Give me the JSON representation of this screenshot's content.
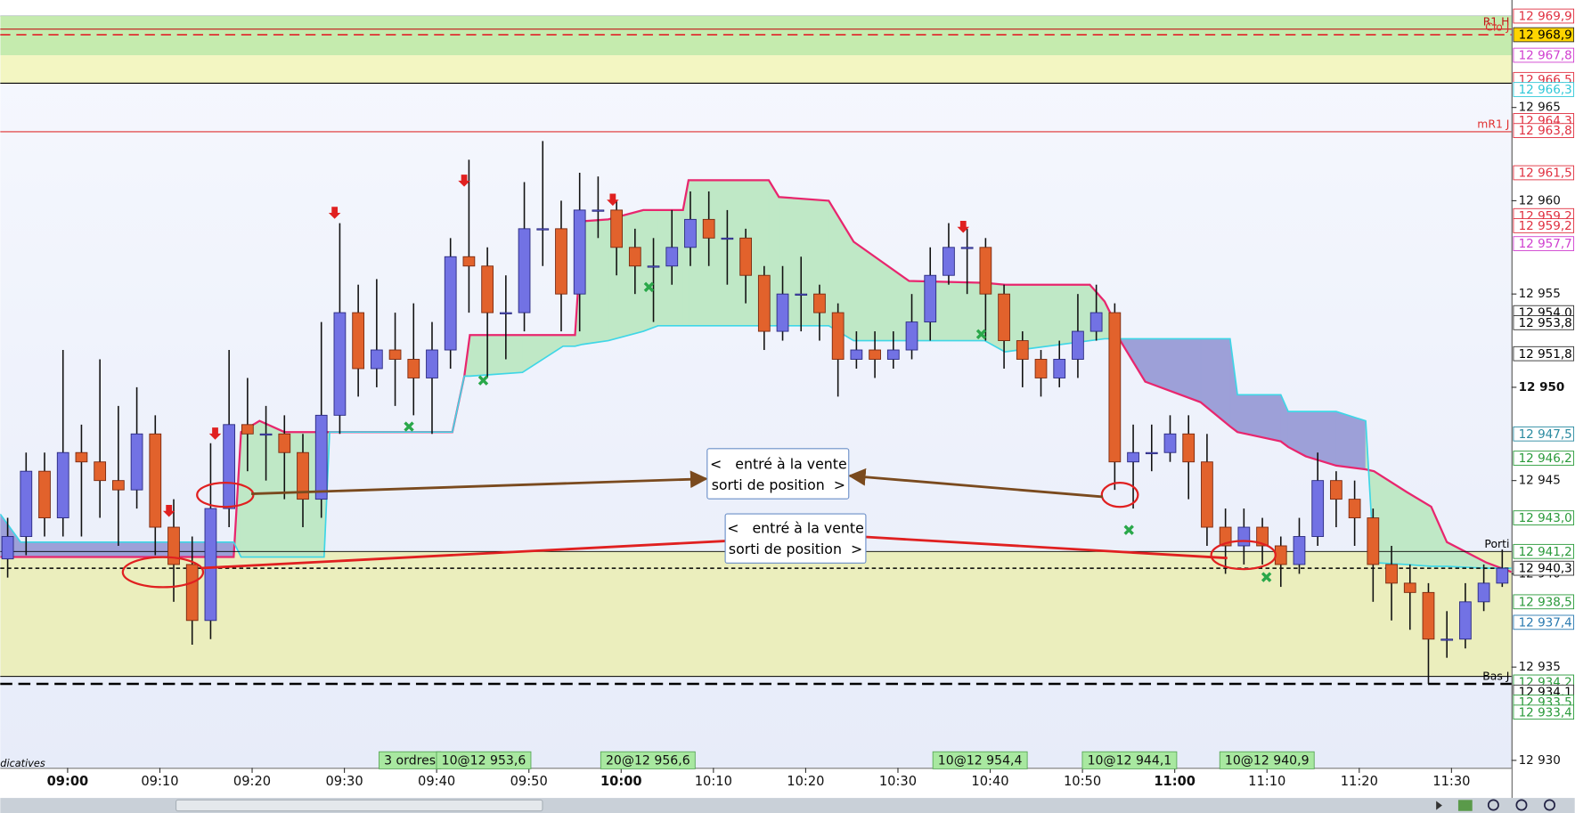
{
  "chart_data": {
    "type": "candlestick",
    "x": [
      533.5,
      535.5,
      537.5,
      539.5,
      541.5,
      543.5,
      545.5,
      547.5,
      549.5,
      551.5,
      553.5,
      555.5,
      557.5,
      559.5,
      561.5,
      563.5,
      565.5,
      567.5,
      569.5,
      571.5,
      573.5,
      575.5,
      577.5,
      579.5,
      581.5,
      583.5,
      585.5,
      587.5,
      589.5,
      591.5,
      593.5,
      595.5,
      597.5,
      599.5,
      601.5,
      603.5,
      605.5,
      607.5,
      609.5,
      611.5,
      613.5,
      615.5,
      617.5,
      619.5,
      621.5,
      623.5,
      625.5,
      627.5,
      629.5,
      631.5,
      633.5,
      635.5,
      637.5,
      639.5,
      641.5,
      643.5,
      645.5,
      647.5,
      649.5,
      651.5,
      653.5,
      655.5,
      657.5,
      659.5,
      661.5,
      663.5,
      665.5,
      667.5,
      669.5,
      671.5,
      673.5,
      675.5,
      677.5,
      679.5,
      681.5,
      683.5,
      685.5,
      687.5,
      689.5,
      691.5,
      693.5,
      695.5
    ],
    "open": [
      12940.8,
      12942,
      12945.5,
      12943,
      12946.5,
      12946,
      12945,
      12944.5,
      12947.5,
      12942.5,
      12940.5,
      12937.5,
      12943.5,
      12948,
      12947.5,
      12947.5,
      12946.5,
      12944,
      12948.5,
      12954,
      12951,
      12952,
      12951.5,
      12950.5,
      12952,
      12957,
      12956.5,
      12954,
      12954,
      12958.5,
      12958.5,
      12955,
      12959.5,
      12959.5,
      12957.5,
      12956.5,
      12956.5,
      12957.5,
      12959,
      12958,
      12958,
      12956,
      12953,
      12955,
      12955,
      12954,
      12951.5,
      12952,
      12951.5,
      12952,
      12953.5,
      12956,
      12957.5,
      12957.5,
      12955,
      12952.5,
      12951.5,
      12950.5,
      12951.5,
      12953,
      12954,
      12946,
      12946.5,
      12946.5,
      12947.5,
      12946,
      12942.5,
      12941.5,
      12942.5,
      12941.5,
      12940.5,
      12942,
      12945,
      12944,
      12943,
      12940.5,
      12939.5,
      12939,
      12936.5,
      12936.5,
      12938.5,
      12939.5
    ],
    "high": [
      12943,
      12946.5,
      12946.5,
      12952,
      12948,
      12951.5,
      12949,
      12950,
      12948.5,
      12944,
      12942,
      12947,
      12952,
      12950.5,
      12949,
      12948.5,
      12947.5,
      12953.5,
      12958.8,
      12955.5,
      12955.8,
      12954,
      12954.5,
      12953.5,
      12958,
      12962.2,
      12957.5,
      12956,
      12961,
      12963.2,
      12960,
      12961.5,
      12961.3,
      12960,
      12958.5,
      12958,
      12959.5,
      12960.5,
      12960.5,
      12959.5,
      12958.5,
      12956.5,
      12956.5,
      12957,
      12955.5,
      12954.5,
      12953,
      12953,
      12953,
      12955,
      12957.5,
      12958.8,
      12958.5,
      12958,
      12955.5,
      12953,
      12952,
      12952.5,
      12955,
      12955.5,
      12954.5,
      12948,
      12948,
      12948.5,
      12948.5,
      12947.5,
      12943.5,
      12943.5,
      12943,
      12942,
      12943,
      12946.5,
      12945.5,
      12945,
      12943.5,
      12941.5,
      12940.5,
      12939.5,
      12938,
      12939.5,
      12940.5,
      12941.3
    ],
    "low": [
      12939.8,
      12941,
      12942,
      12942,
      12942,
      12943,
      12941.5,
      12943.5,
      12941,
      12938.5,
      12936.2,
      12936.5,
      12942.5,
      12945.5,
      12945,
      12944,
      12942.5,
      12943,
      12947.5,
      12949.5,
      12950,
      12949,
      12948.5,
      12947.5,
      12951,
      12954,
      12950.5,
      12951.5,
      12953,
      12956.5,
      12953,
      12953,
      12958,
      12956,
      12955,
      12953.5,
      12955.5,
      12956.5,
      12956.5,
      12955.5,
      12954.5,
      12952,
      12952.5,
      12953,
      12952.5,
      12949.5,
      12951,
      12950.5,
      12951,
      12951.5,
      12952.5,
      12955.5,
      12955,
      12952.5,
      12951,
      12950,
      12949.5,
      12950,
      12950.5,
      12952.5,
      12944.5,
      12943.5,
      12945.5,
      12946,
      12944,
      12941.5,
      12940,
      12940.5,
      12940.5,
      12939.3,
      12940,
      12941.5,
      12942.5,
      12941.5,
      12938.5,
      12937.5,
      12937,
      12934.1,
      12935.5,
      12936,
      12938,
      12939.3
    ],
    "close": [
      12942,
      12945.5,
      12943,
      12946.5,
      12946,
      12945,
      12944.5,
      12947.5,
      12942.5,
      12940.5,
      12937.5,
      12943.5,
      12948,
      12947.5,
      12947.5,
      12946.5,
      12944,
      12948.5,
      12954,
      12951,
      12952,
      12951.5,
      12950.5,
      12952,
      12957,
      12956.5,
      12954,
      12954,
      12958.5,
      12958.5,
      12955,
      12959.5,
      12959.5,
      12957.5,
      12956.5,
      12956.5,
      12957.5,
      12959,
      12958,
      12958,
      12956,
      12953,
      12955,
      12955,
      12954,
      12951.5,
      12952,
      12951.5,
      12952,
      12953.5,
      12956,
      12957.5,
      12957.5,
      12955,
      12952.5,
      12951.5,
      12950.5,
      12951.5,
      12953,
      12954,
      12946,
      12946.5,
      12946.5,
      12947.5,
      12946,
      12942.5,
      12941.5,
      12942.5,
      12941.5,
      12940.5,
      12942,
      12945,
      12944,
      12943,
      12940.5,
      12939.5,
      12939,
      12936.5,
      12936.5,
      12938.5,
      12939.5,
      12940.3
    ],
    "up_color": "#7272e4",
    "down_color": "#e2622c",
    "xlim": [
      532.7,
      696.5
    ],
    "xticks": [
      {
        "value": 540,
        "label": "09:00"
      },
      {
        "value": 550,
        "label": "09:10"
      },
      {
        "value": 560,
        "label": "09:20"
      },
      {
        "value": 570,
        "label": "09:30"
      },
      {
        "value": 580,
        "label": "09:40"
      },
      {
        "value": 590,
        "label": "09:50"
      },
      {
        "value": 600,
        "label": "10:00"
      },
      {
        "value": 610,
        "label": "10:10"
      },
      {
        "value": 620,
        "label": "10:20"
      },
      {
        "value": 630,
        "label": "10:30"
      },
      {
        "value": 640,
        "label": "10:40"
      },
      {
        "value": 650,
        "label": "10:50"
      },
      {
        "value": 660,
        "label": "11:00"
      },
      {
        "value": 670,
        "label": "11:10"
      },
      {
        "value": 680,
        "label": "11:20"
      },
      {
        "value": 690,
        "label": "11:30"
      }
    ],
    "ylim": [
      12929.6,
      12969.9
    ],
    "yticks": [
      {
        "value": 12930,
        "label": "12 930"
      },
      {
        "value": 12935,
        "label": "12 935"
      },
      {
        "value": 12940,
        "label": "12 940"
      },
      {
        "value": 12945,
        "label": "12 945"
      },
      {
        "value": 12950,
        "label": "12 950"
      },
      {
        "value": 12955,
        "label": "12 955"
      },
      {
        "value": 12960,
        "label": "12 960"
      },
      {
        "value": 12965,
        "label": "12 965"
      }
    ],
    "cloud": {
      "x": [
        532.7,
        534.9,
        558.0,
        558.8,
        560.8,
        563.5,
        567.8,
        568.4,
        581.7,
        583.0,
        583.6,
        589.3,
        593.7,
        595.0,
        595.8,
        598.6,
        602.4,
        604.0,
        606.7,
        607.3,
        616.0,
        617.1,
        622.5,
        625.2,
        631.2,
        639.4,
        641.6,
        650.8,
        652.4,
        653.5,
        654.1,
        656.8,
        662.8,
        666.0,
        666.8,
        671.5,
        672.3,
        674.2,
        677.5,
        680.7,
        681.6,
        685.1,
        687.8,
        689.5,
        693.8,
        696.5
      ],
      "line_a": [
        12940.9,
        12940.9,
        12940.9,
        12947.6,
        12948.2,
        12947.6,
        12947.6,
        12947.6,
        12947.6,
        12950.6,
        12952.8,
        12952.8,
        12952.8,
        12952.8,
        12958.9,
        12959.0,
        12959.5,
        12959.5,
        12959.5,
        12961.1,
        12961.1,
        12960.2,
        12960.0,
        12957.8,
        12955.7,
        12955.6,
        12955.5,
        12955.5,
        12954.6,
        12953.5,
        12952.5,
        12950.3,
        12949.2,
        12947.9,
        12947.6,
        12947.1,
        12946.8,
        12946.3,
        12945.8,
        12945.6,
        12945.5,
        12944.4,
        12943.6,
        12941.7,
        12940.6,
        12940.1
      ],
      "line_b": [
        12943.2,
        12941.7,
        12941.7,
        12940.9,
        12940.9,
        12940.9,
        12940.9,
        12947.6,
        12947.6,
        12950.6,
        12950.6,
        12950.8,
        12952.2,
        12952.2,
        12952.3,
        12952.5,
        12953.0,
        12953.3,
        12953.3,
        12953.3,
        12953.3,
        12953.3,
        12953.3,
        12952.5,
        12952.5,
        12952.5,
        12951.9,
        12952.5,
        12952.6,
        12952.6,
        12952.6,
        12952.6,
        12952.6,
        12952.6,
        12949.6,
        12949.6,
        12948.7,
        12948.7,
        12948.7,
        12948.2,
        12940.6,
        12940.5,
        12940.4,
        12940.4,
        12940.3,
        12940.3
      ],
      "color_a": "#e8266e",
      "color_b": "#3fd6e6",
      "fill_up": "#bfe8c6",
      "fill_down": "#9da0d8"
    },
    "zones": [
      {
        "low": 12967.8,
        "high": 12969.9,
        "color": "#c5ebae"
      },
      {
        "low": 12966.3,
        "high": 12967.8,
        "color": "#f3f6c2"
      },
      {
        "low": 12934.5,
        "high": 12941.2,
        "color": "#ebeebd"
      }
    ],
    "hlines": [
      {
        "value": 12969.2,
        "label": "R1 H",
        "color": "#c01818",
        "dash": "none",
        "width": 1
      },
      {
        "value": 12968.9,
        "label": "Clo J",
        "color": "#e03030",
        "dash": "10 6",
        "width": 1.5
      },
      {
        "value": 12966.3,
        "color": "#000000",
        "dash": "none",
        "width": 1
      },
      {
        "value": 12963.7,
        "label": "mR1 J",
        "color": "#e03030",
        "dash": "none",
        "width": 1
      },
      {
        "value": 12941.2,
        "label": "Porti",
        "color": "#000000",
        "dash": "none",
        "width": 0.8
      },
      {
        "value": 12940.3,
        "color": "#000000",
        "dash": "4 3",
        "width": 1.3
      },
      {
        "value": 12934.5,
        "color": "#000000",
        "dash": "none",
        "width": 0.8
      },
      {
        "value": 12934.1,
        "label": "Bas J",
        "color": "#000000",
        "dash": "12 6",
        "width": 2.2
      }
    ],
    "levels": [
      {
        "value": 12969.9,
        "label": "12 969,9",
        "color": "#e03040"
      },
      {
        "value": 12968.9,
        "label": "12 968,9",
        "color": "#000000",
        "bg": "#ffd400"
      },
      {
        "value": 12967.8,
        "label": "12 967,8",
        "color": "#d040d0"
      },
      {
        "value": 12966.5,
        "label": "12 966,5",
        "color": "#e03040"
      },
      {
        "value": 12966.3,
        "label": "12 966,3",
        "color": "#30c8d8"
      },
      {
        "value": 12964.3,
        "label": "12 964,3",
        "color": "#e03040"
      },
      {
        "value": 12963.8,
        "label": "12 963,8",
        "color": "#e03040"
      },
      {
        "value": 12961.5,
        "label": "12 961,5",
        "color": "#e03040"
      },
      {
        "value": 12959.2,
        "label": "12 959,2",
        "color": "#e03040"
      },
      {
        "value": 12959.2,
        "label": "12 959,2",
        "color": "#e03040"
      },
      {
        "value": 12957.7,
        "label": "12 957,7",
        "color": "#d040d0"
      },
      {
        "value": 12954.0,
        "label": "12 954,0",
        "color": "#000000"
      },
      {
        "value": 12953.8,
        "label": "12 953,8",
        "color": "#000000"
      },
      {
        "value": 12951.8,
        "label": "12 951,8",
        "color": "#000000"
      },
      {
        "value": 12947.5,
        "label": "12 947,5",
        "color": "#2a8aa0"
      },
      {
        "value": 12946.2,
        "label": "12 946,2",
        "color": "#2a9a3a"
      },
      {
        "value": 12943.0,
        "label": "12 943,0",
        "color": "#2a9a3a"
      },
      {
        "value": 12941.2,
        "label": "12 941,2",
        "color": "#2a9a3a"
      },
      {
        "value": 12940.3,
        "label": "12 940,3",
        "color": "#000000"
      },
      {
        "value": 12938.5,
        "label": "12 938,5",
        "color": "#2a9a3a"
      },
      {
        "value": 12937.4,
        "label": "12 937,4",
        "color": "#2a7ab0"
      },
      {
        "value": 12934.2,
        "label": "12 934,2",
        "color": "#2a9a3a"
      },
      {
        "value": 12934.1,
        "label": "12 934,1",
        "color": "#000000"
      },
      {
        "value": 12933.5,
        "label": "12 933,5",
        "color": "#2a9a3a"
      },
      {
        "value": 12933.4,
        "label": "12 933,4",
        "color": "#2a9a3a"
      }
    ],
    "orders": [
      {
        "x": 577.1,
        "label": "3 ordres"
      },
      {
        "x": 585.1,
        "label": "10@12 953,6"
      },
      {
        "x": 602.9,
        "label": "20@12 956,6"
      },
      {
        "x": 638.9,
        "label": "10@12 954,4"
      },
      {
        "x": 655.1,
        "label": "10@12 944,1"
      },
      {
        "x": 670.0,
        "label": "10@12 940,9"
      }
    ],
    "annotations": [
      [
        "<   entré à la vente",
        "sorti de position  >"
      ],
      [
        "<   entré à la vente",
        "sorti de position  >"
      ]
    ],
    "footer_text": "dicatives"
  }
}
